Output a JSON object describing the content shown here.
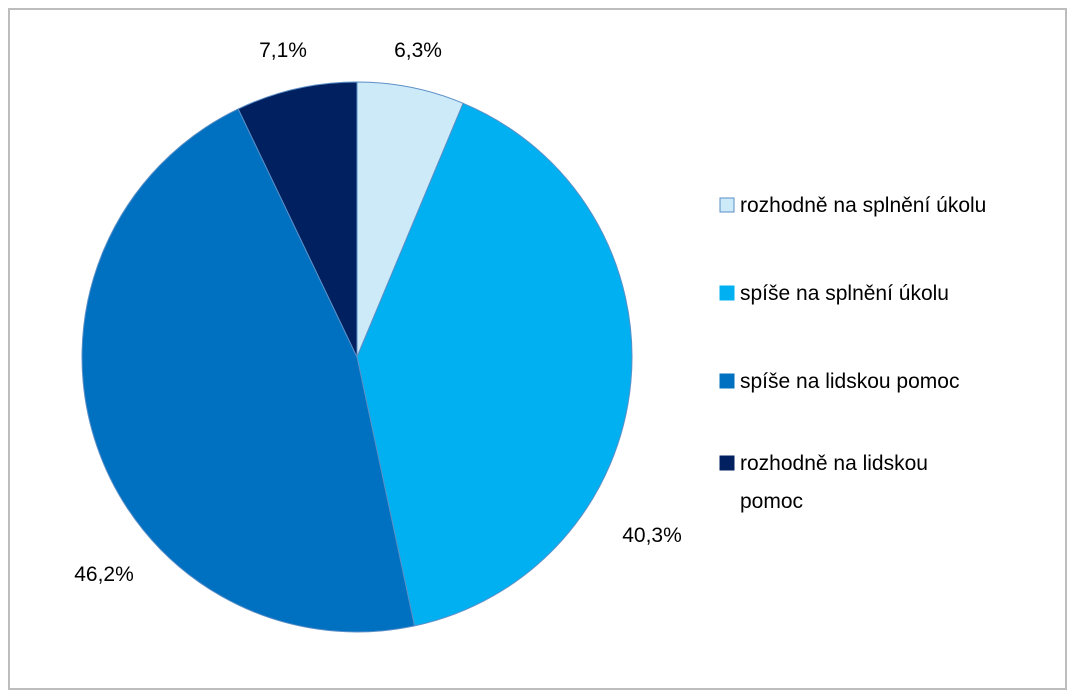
{
  "chart_data": {
    "type": "pie",
    "categories": [
      "rozhodně na splnění úkolu",
      "spíše na splnění úkolu",
      "spíše na lidskou pomoc",
      "rozhodně na lidskou pomoc"
    ],
    "values": [
      6.3,
      40.3,
      46.2,
      7.1
    ],
    "value_labels": [
      "6,3%",
      "40,3%",
      "46,2%",
      "7,1%"
    ],
    "colors": [
      "#cdeaf9",
      "#00b0f0",
      "#0070c0",
      "#002060"
    ],
    "legend": {
      "placement": "right",
      "entries": [
        [
          "rozhodně na splnění úkolu"
        ],
        [
          "spíše na splnění úkolu"
        ],
        [
          "spíše na lidskou pomoc"
        ],
        [
          "rozhodně na lidskou",
          "pomoc"
        ]
      ]
    },
    "start_angle": "12 o'clock",
    "direction": "clockwise"
  }
}
